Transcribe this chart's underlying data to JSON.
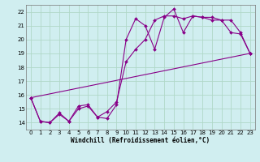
{
  "xlabel": "Windchill (Refroidissement éolien,°C)",
  "background_color": "#d0eef0",
  "grid_color": "#b0d8c8",
  "line_color": "#880088",
  "xlim": [
    -0.5,
    23.5
  ],
  "ylim": [
    13.5,
    22.5
  ],
  "xticks": [
    0,
    1,
    2,
    3,
    4,
    5,
    6,
    7,
    8,
    9,
    10,
    11,
    12,
    13,
    14,
    15,
    16,
    17,
    18,
    19,
    20,
    21,
    22,
    23
  ],
  "yticks": [
    14,
    15,
    16,
    17,
    18,
    19,
    20,
    21,
    22
  ],
  "line1_x": [
    0,
    1,
    2,
    3,
    4,
    5,
    6,
    7,
    8,
    9,
    10,
    11,
    12,
    13,
    14,
    15,
    16,
    17,
    18,
    19,
    20,
    21,
    22,
    23
  ],
  "line1_y": [
    15.8,
    14.1,
    14.0,
    14.6,
    14.1,
    15.0,
    15.2,
    14.4,
    14.3,
    15.3,
    20.0,
    21.5,
    21.0,
    19.3,
    21.6,
    22.2,
    20.5,
    21.7,
    21.6,
    21.6,
    21.4,
    20.5,
    20.4,
    19.0
  ],
  "line2_x": [
    0,
    1,
    2,
    3,
    4,
    5,
    6,
    7,
    8,
    9,
    10,
    11,
    12,
    13,
    14,
    15,
    16,
    17,
    18,
    19,
    20,
    21,
    22,
    23
  ],
  "line2_y": [
    15.8,
    14.1,
    14.0,
    14.7,
    14.1,
    15.2,
    15.3,
    14.4,
    14.8,
    15.5,
    18.4,
    19.3,
    20.0,
    21.4,
    21.7,
    21.7,
    21.5,
    21.7,
    21.6,
    21.4,
    21.4,
    21.4,
    20.5,
    19.0
  ],
  "line3_x": [
    0,
    23
  ],
  "line3_y": [
    15.8,
    19.0
  ]
}
